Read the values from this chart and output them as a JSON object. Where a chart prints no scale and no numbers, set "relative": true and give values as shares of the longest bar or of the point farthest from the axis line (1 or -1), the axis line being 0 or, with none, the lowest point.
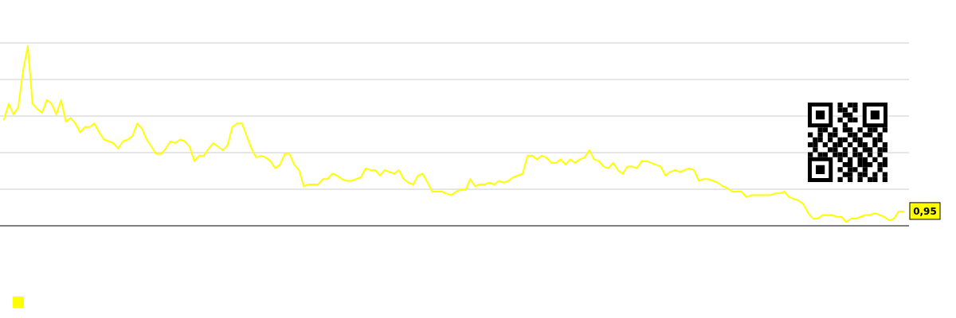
{
  "chart_data": {
    "type": "line",
    "relative": true,
    "grid": "y",
    "annotations": [
      "0,95"
    ],
    "categories": [
      null,
      null,
      null,
      null,
      null,
      null,
      null,
      null,
      null,
      null,
      null,
      null,
      null,
      null,
      null,
      null,
      null,
      null,
      null,
      null,
      null,
      null,
      null,
      null,
      null,
      null,
      null,
      null,
      null,
      null,
      null,
      null,
      null,
      null,
      null,
      null,
      null,
      null,
      null,
      null,
      null,
      null,
      null,
      null,
      null,
      null,
      null,
      null,
      null,
      null,
      null,
      null,
      null,
      null,
      null,
      null,
      null,
      null,
      null,
      null,
      null,
      null,
      null,
      null,
      null,
      null,
      null,
      null,
      null,
      null,
      null,
      null,
      null,
      null,
      null,
      null,
      null,
      null,
      null,
      null,
      null,
      null,
      null,
      null,
      null,
      null,
      null,
      null,
      null,
      null,
      null,
      null,
      null,
      null,
      null,
      null,
      null,
      null,
      null,
      null,
      null,
      null,
      null,
      null,
      null,
      null,
      null,
      null,
      null,
      null,
      null,
      null,
      null,
      null,
      null,
      null,
      null,
      null,
      null,
      null,
      null,
      null,
      null,
      null,
      null,
      null,
      null,
      null,
      null,
      null,
      null,
      null,
      null,
      null,
      null,
      null,
      null,
      null,
      null,
      null,
      null,
      null,
      null,
      null,
      null,
      null,
      null,
      null,
      null,
      null,
      null,
      null,
      null,
      null,
      null,
      null,
      null,
      null,
      null,
      null,
      null,
      null,
      null,
      null,
      null,
      null,
      null,
      null,
      null,
      null,
      null,
      null,
      null,
      null,
      null,
      null,
      null,
      null,
      null,
      null,
      null,
      null,
      null,
      null,
      null,
      null,
      null,
      null,
      null,
      null
    ],
    "series": [
      {
        "color": "#ffff00",
        "values": [
          0.59,
          0.68,
          0.62,
          0.66,
          0.86,
          1,
          0.68,
          0.65,
          0.63,
          0.7,
          0.68,
          0.62,
          0.7,
          0.58,
          0.6,
          0.57,
          0.52,
          0.55,
          0.55,
          0.57,
          0.52,
          0.48,
          0.47,
          0.46,
          0.43,
          0.47,
          0.48,
          0.5,
          0.57,
          0.54,
          0.48,
          0.44,
          0.4,
          0.4,
          0.43,
          0.47,
          0.46,
          0.48,
          0.47,
          0.44,
          0.36,
          0.39,
          0.39,
          0.43,
          0.46,
          0.44,
          0.42,
          0.45,
          0.55,
          0.57,
          0.57,
          0.5,
          0.43,
          0.38,
          0.39,
          0.38,
          0.36,
          0.32,
          0.34,
          0.4,
          0.4,
          0.34,
          0.31,
          0.22,
          0.23,
          0.23,
          0.23,
          0.26,
          0.26,
          0.29,
          0.28,
          0.26,
          0.25,
          0.25,
          0.26,
          0.27,
          0.32,
          0.31,
          0.31,
          0.28,
          0.31,
          0.3,
          0.29,
          0.31,
          0.26,
          0.24,
          0.23,
          0.28,
          0.29,
          0.24,
          0.19,
          0.19,
          0.19,
          0.18,
          0.17,
          0.19,
          0.2,
          0.2,
          0.26,
          0.22,
          0.23,
          0.23,
          0.24,
          0.23,
          0.25,
          0.24,
          0.25,
          0.27,
          0.28,
          0.29,
          0.39,
          0.39,
          0.37,
          0.39,
          0.38,
          0.35,
          0.35,
          0.37,
          0.34,
          0.37,
          0.35,
          0.37,
          0.38,
          0.42,
          0.37,
          0.36,
          0.33,
          0.32,
          0.35,
          0.31,
          0.29,
          0.33,
          0.33,
          0.32,
          0.36,
          0.36,
          0.35,
          0.34,
          0.33,
          0.28,
          0.3,
          0.31,
          0.3,
          0.31,
          0.32,
          0.31,
          0.25,
          0.26,
          0.26,
          0.25,
          0.24,
          0.22,
          0.21,
          0.19,
          0.19,
          0.19,
          0.16,
          0.17,
          0.17,
          0.17,
          0.17,
          0.17,
          0.18,
          0.18,
          0.19,
          0.16,
          0.15,
          0.14,
          0.12,
          0.07,
          0.04,
          0.04,
          0.06,
          0.06,
          0.06,
          0.05,
          0.05,
          0.02,
          0.04,
          0.04,
          0.05,
          0.06,
          0.06,
          0.07,
          0.06,
          0.05,
          0.03,
          0.04,
          0.08,
          0.08
        ]
      }
    ]
  }
}
